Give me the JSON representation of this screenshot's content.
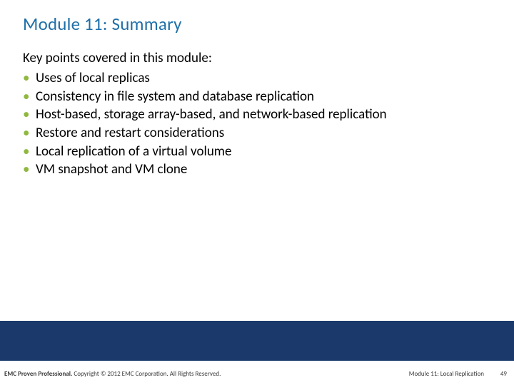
{
  "title": "Module 11: Summary",
  "intro": "Key points covered in this module:",
  "bullets": [
    "Uses of local replicas",
    "Consistency in file system and database replication",
    "Host-based, storage array-based, and network-based replication",
    "Restore and restart considerations",
    "Local replication of a virtual volume",
    "VM snapshot and VM clone"
  ],
  "footer": {
    "brand_bold": "EMC Proven Professional.",
    "copyright": " Copyright © 2012 EMC Corporation. All Rights Reserved.",
    "module": "Module 11: Local Replication",
    "page": "49"
  },
  "colors": {
    "title": "#1f6fa8",
    "bullet_marker": "#8fb83f",
    "footer_bar": "#1b3a6b",
    "text": "#000000",
    "footer_text": "#3a3a3a",
    "background": "#ffffff"
  }
}
